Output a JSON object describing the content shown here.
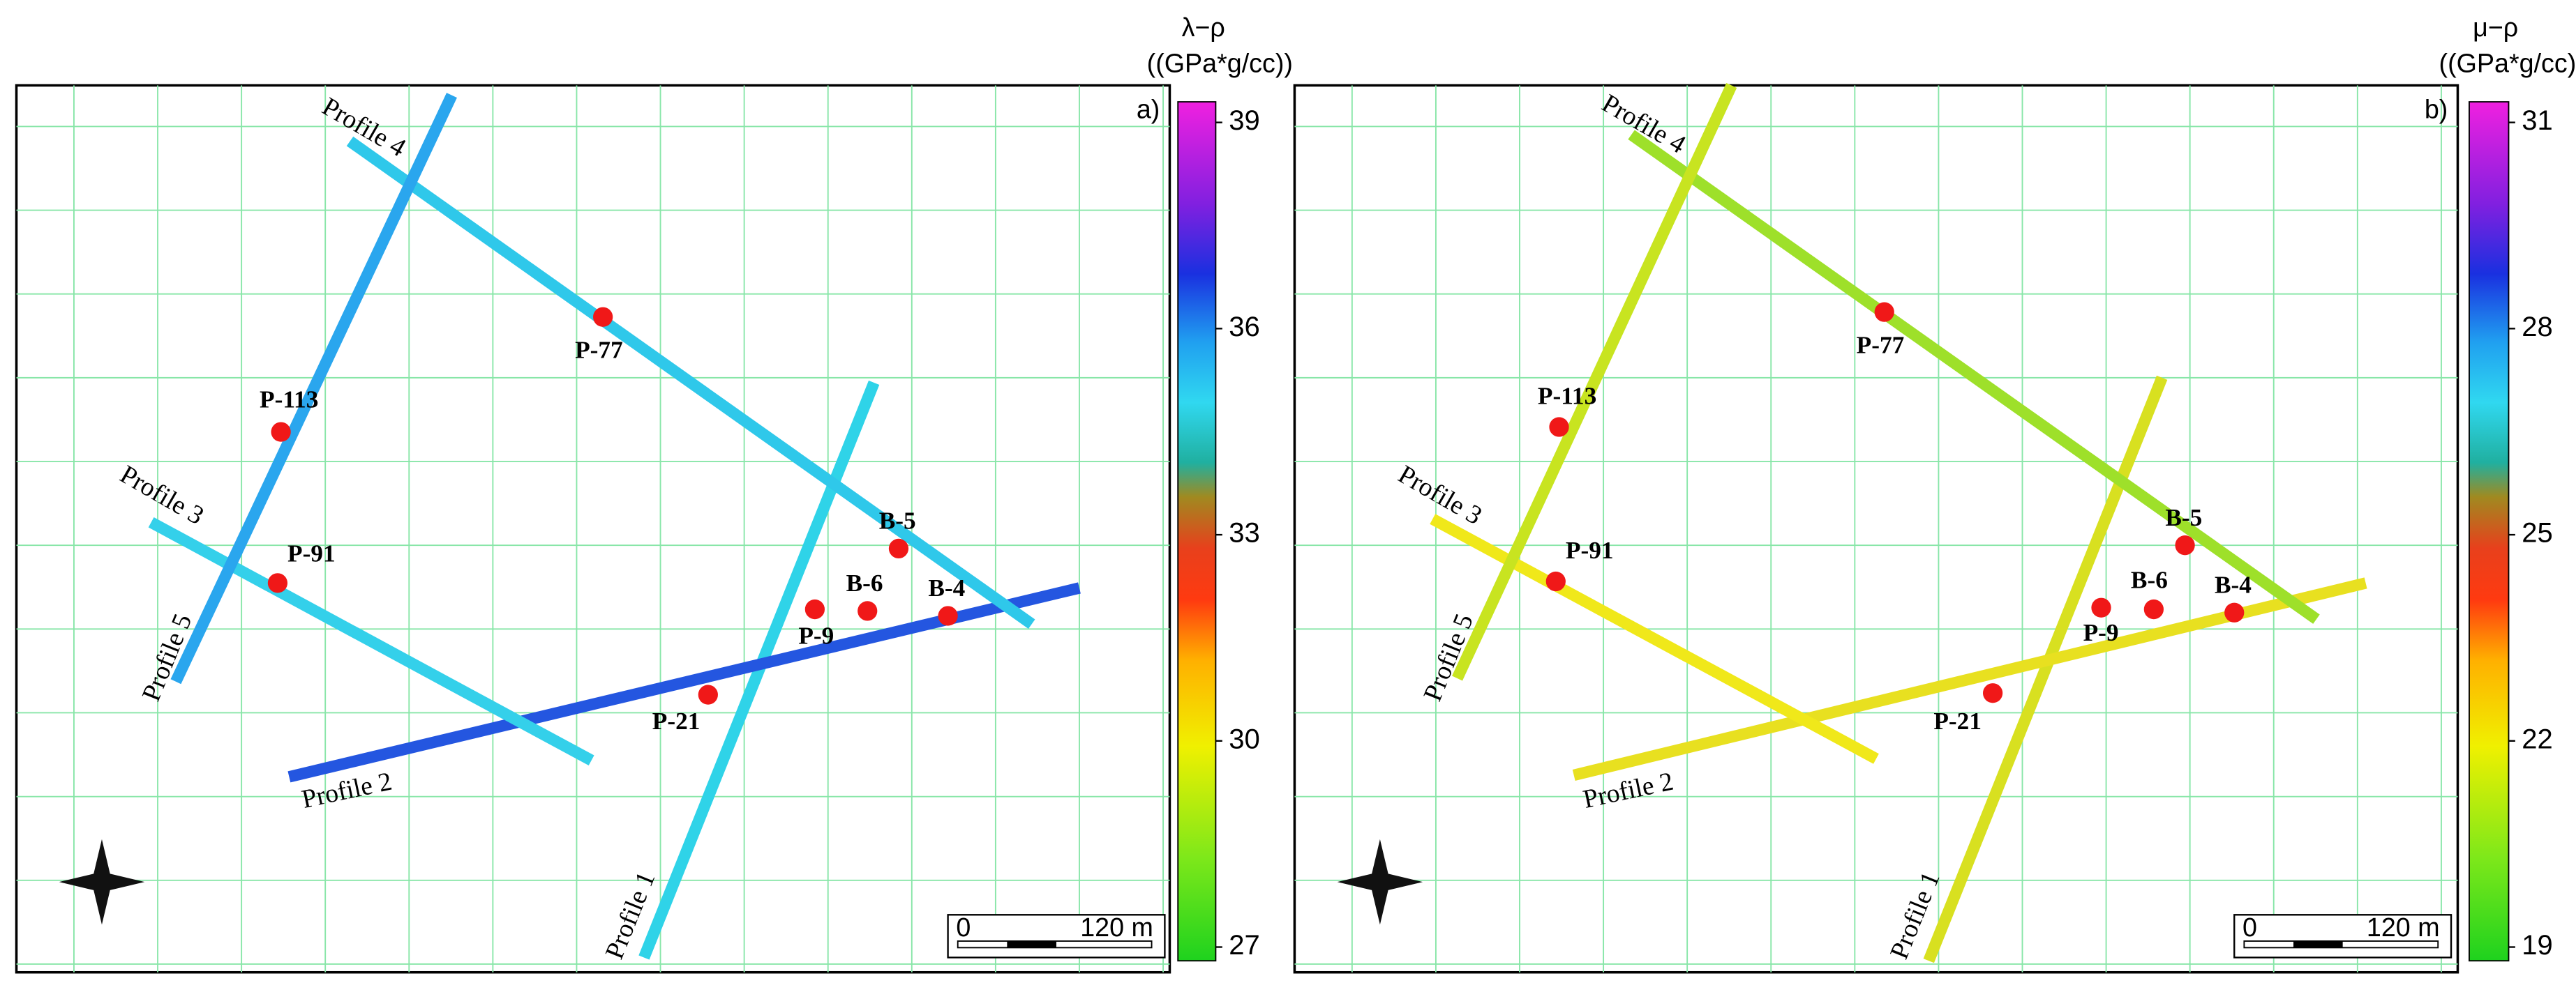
{
  "panels": [
    {
      "label": "a)",
      "colorbar": {
        "title": "λ−ρ",
        "unit": "((GPa*g/cc))",
        "range": [
          26.8,
          39.3
        ],
        "ticks": [
          27,
          30,
          33,
          36,
          39
        ]
      },
      "wells": [
        "P-77",
        "P-113",
        "P-91",
        "B-5",
        "B-6",
        "B-4",
        "P-9",
        "P-21"
      ],
      "profiles": [
        "Profile 1",
        "Profile 2",
        "Profile 3",
        "Profile 4",
        "Profile 5"
      ],
      "scale_bar": {
        "start": "0",
        "length": "120 m"
      }
    },
    {
      "label": "b)",
      "colorbar": {
        "title": "μ−ρ",
        "unit": "((GPa*g/cc))",
        "range": [
          18.8,
          31.3
        ],
        "ticks": [
          19,
          22,
          25,
          28,
          31
        ]
      },
      "wells": [
        "P-77",
        "P-113",
        "P-91",
        "B-5",
        "B-6",
        "B-4",
        "P-9",
        "P-21"
      ],
      "profiles": [
        "Profile 1",
        "Profile 2",
        "Profile 3",
        "Profile 4",
        "Profile 5"
      ],
      "scale_bar": {
        "start": "0",
        "length": "120 m"
      }
    }
  ]
}
